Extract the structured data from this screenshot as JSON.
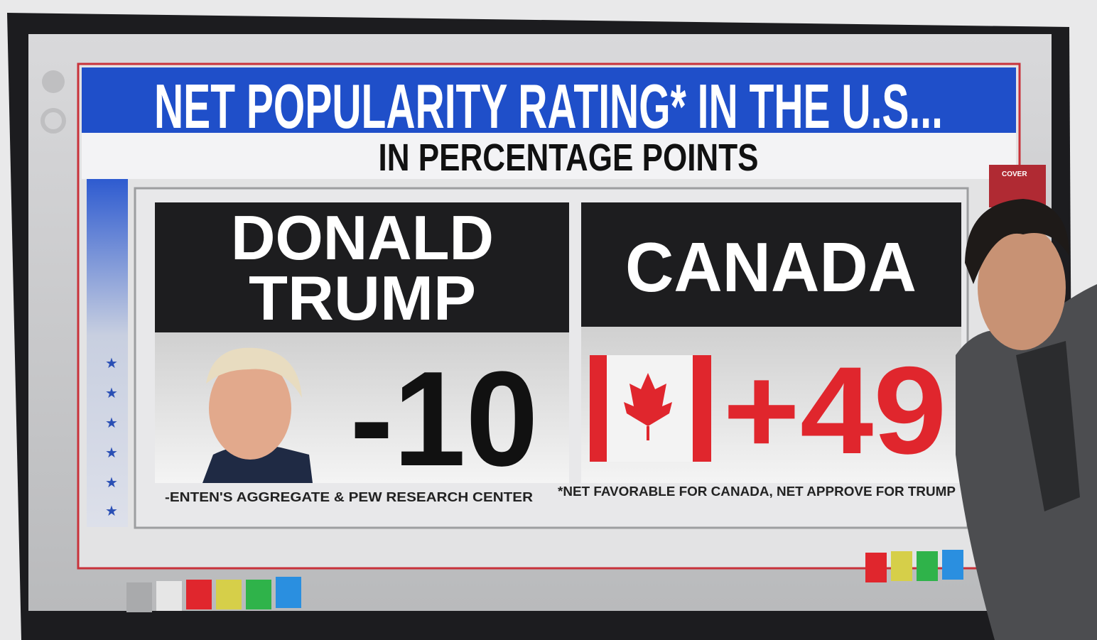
{
  "header": {
    "title": "NET POPULARITY RATING* IN THE U.S...",
    "subtitle": "IN PERCENTAGE POINTS"
  },
  "panels": [
    {
      "label_lines": [
        "DONALD",
        "TRUMP"
      ],
      "value": "-10"
    },
    {
      "label_lines": [
        "CANADA"
      ],
      "value": "+49"
    }
  ],
  "footnotes": {
    "source": "-ENTEN'S AGGREGATE & PEW RESEARCH CENTER",
    "note": "*NET FAVORABLE FOR CANADA, NET APPROVE FOR TRUMP"
  },
  "side_tab": "COVER"
}
